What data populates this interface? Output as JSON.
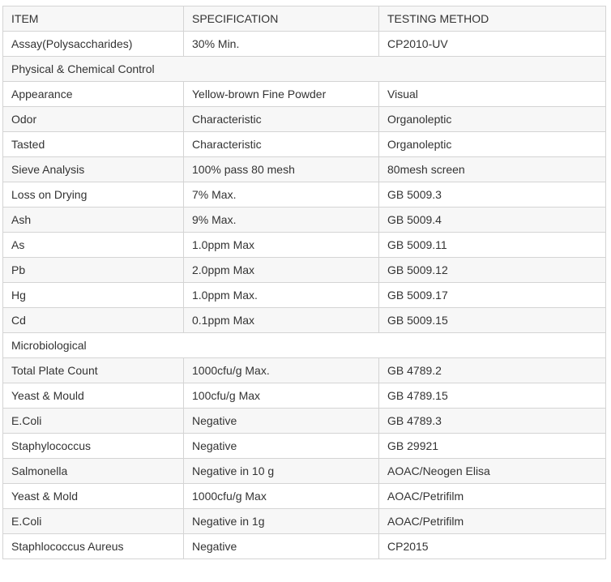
{
  "header": [
    "ITEM",
    "SPECIFICATION",
    "TESTING METHOD"
  ],
  "rows": [
    [
      "Assay(Polysaccharides)",
      "30% Min.",
      "CP2010-UV"
    ],
    [
      "Physical & Chemical Control"
    ],
    [
      "Appearance",
      "Yellow-brown Fine Powder",
      "Visual"
    ],
    [
      "Odor",
      "Characteristic",
      "Organoleptic"
    ],
    [
      "Tasted",
      "Characteristic",
      "Organoleptic"
    ],
    [
      "Sieve Analysis",
      "100% pass 80 mesh",
      "80mesh screen"
    ],
    [
      "Loss on Drying",
      "7% Max.",
      "GB 5009.3"
    ],
    [
      "Ash",
      "9% Max.",
      "GB 5009.4"
    ],
    [
      "As",
      "1.0ppm Max",
      "GB 5009.11"
    ],
    [
      "Pb",
      "2.0ppm Max",
      "GB 5009.12"
    ],
    [
      "Hg",
      "1.0ppm Max.",
      "GB 5009.17"
    ],
    [
      "Cd",
      "0.1ppm Max",
      "GB 5009.15"
    ],
    [
      "Microbiological"
    ],
    [
      "Total Plate Count",
      "1000cfu/g Max.",
      "GB 4789.2"
    ],
    [
      "Yeast & Mould",
      "100cfu/g Max",
      "GB 4789.15"
    ],
    [
      "E.Coli",
      "Negative",
      "GB 4789.3"
    ],
    [
      "Staphylococcus",
      "Negative",
      "GB 29921"
    ],
    [
      "Salmonella",
      "Negative in 10 g",
      "AOAC/Neogen Elisa"
    ],
    [
      "Yeast & Mold",
      "1000cfu/g Max",
      "AOAC/Petrifilm"
    ],
    [
      "E.Coli",
      "Negative in 1g",
      "AOAC/Petrifilm"
    ],
    [
      "Staphlococcus Aureus",
      "Negative",
      "CP2015"
    ]
  ]
}
